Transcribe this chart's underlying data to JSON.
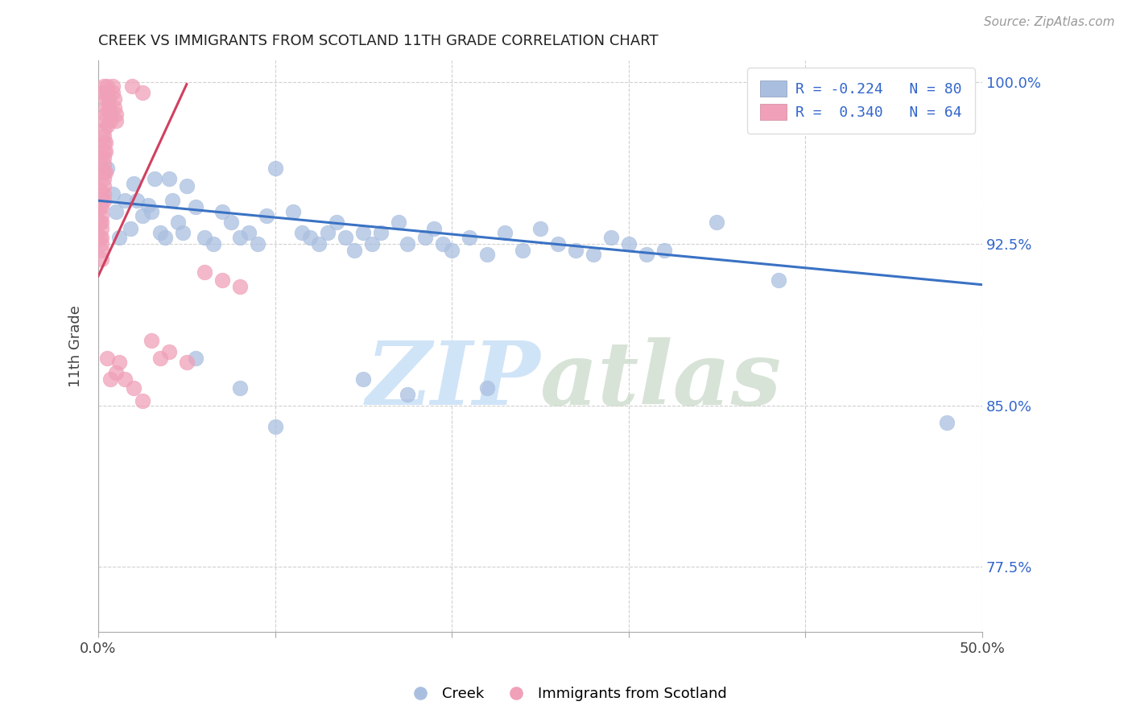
{
  "title": "CREEK VS IMMIGRANTS FROM SCOTLAND 11TH GRADE CORRELATION CHART",
  "source": "Source: ZipAtlas.com",
  "ylabel": "11th Grade",
  "xlim": [
    0.0,
    0.5
  ],
  "ylim": [
    0.745,
    1.01
  ],
  "xtick_values": [
    0.0,
    0.1,
    0.2,
    0.3,
    0.4,
    0.5
  ],
  "xtick_labels": [
    "0.0%",
    "",
    "",
    "",
    "",
    "50.0%"
  ],
  "ytick_values": [
    0.775,
    0.85,
    0.925,
    1.0
  ],
  "ytick_labels": [
    "77.5%",
    "85.0%",
    "92.5%",
    "100.0%"
  ],
  "grid_color": "#d0d0d0",
  "background_color": "#ffffff",
  "title_color": "#222222",
  "axis_label_color": "#444444",
  "tick_color": "#444444",
  "right_tick_color": "#3366cc",
  "blue_scatter_color": "#aabfe0",
  "pink_scatter_color": "#f0a0b8",
  "blue_line_color": "#3a72c4",
  "pink_line_color": "#d04060",
  "watermark_color": "#d0e4f8",
  "blue_legend_label": "Creek",
  "pink_legend_label": "Immigrants from Scotland",
  "blue_scatter": [
    [
      0.005,
      0.96
    ],
    [
      0.008,
      0.948
    ],
    [
      0.01,
      0.94
    ],
    [
      0.012,
      0.928
    ],
    [
      0.015,
      0.945
    ],
    [
      0.018,
      0.932
    ],
    [
      0.02,
      0.953
    ],
    [
      0.022,
      0.945
    ],
    [
      0.025,
      0.938
    ],
    [
      0.028,
      0.943
    ],
    [
      0.03,
      0.94
    ],
    [
      0.032,
      0.955
    ],
    [
      0.035,
      0.93
    ],
    [
      0.038,
      0.928
    ],
    [
      0.04,
      0.955
    ],
    [
      0.042,
      0.945
    ],
    [
      0.045,
      0.935
    ],
    [
      0.048,
      0.93
    ],
    [
      0.05,
      0.952
    ],
    [
      0.055,
      0.942
    ],
    [
      0.06,
      0.928
    ],
    [
      0.065,
      0.925
    ],
    [
      0.07,
      0.94
    ],
    [
      0.075,
      0.935
    ],
    [
      0.08,
      0.928
    ],
    [
      0.085,
      0.93
    ],
    [
      0.09,
      0.925
    ],
    [
      0.095,
      0.938
    ],
    [
      0.1,
      0.96
    ],
    [
      0.11,
      0.94
    ],
    [
      0.115,
      0.93
    ],
    [
      0.12,
      0.928
    ],
    [
      0.125,
      0.925
    ],
    [
      0.13,
      0.93
    ],
    [
      0.135,
      0.935
    ],
    [
      0.14,
      0.928
    ],
    [
      0.145,
      0.922
    ],
    [
      0.15,
      0.93
    ],
    [
      0.155,
      0.925
    ],
    [
      0.16,
      0.93
    ],
    [
      0.17,
      0.935
    ],
    [
      0.175,
      0.925
    ],
    [
      0.185,
      0.928
    ],
    [
      0.19,
      0.932
    ],
    [
      0.195,
      0.925
    ],
    [
      0.2,
      0.922
    ],
    [
      0.21,
      0.928
    ],
    [
      0.22,
      0.92
    ],
    [
      0.23,
      0.93
    ],
    [
      0.24,
      0.922
    ],
    [
      0.25,
      0.932
    ],
    [
      0.26,
      0.925
    ],
    [
      0.27,
      0.922
    ],
    [
      0.28,
      0.92
    ],
    [
      0.29,
      0.928
    ],
    [
      0.3,
      0.925
    ],
    [
      0.31,
      0.92
    ],
    [
      0.32,
      0.922
    ],
    [
      0.055,
      0.872
    ],
    [
      0.08,
      0.858
    ],
    [
      0.15,
      0.862
    ],
    [
      0.175,
      0.855
    ],
    [
      0.1,
      0.84
    ],
    [
      0.22,
      0.858
    ],
    [
      0.35,
      0.935
    ],
    [
      0.385,
      0.908
    ],
    [
      0.48,
      0.842
    ]
  ],
  "pink_scatter": [
    [
      0.005,
      0.998
    ],
    [
      0.005,
      0.995
    ],
    [
      0.006,
      0.992
    ],
    [
      0.006,
      0.988
    ],
    [
      0.007,
      0.985
    ],
    [
      0.007,
      0.982
    ],
    [
      0.008,
      0.998
    ],
    [
      0.008,
      0.995
    ],
    [
      0.009,
      0.992
    ],
    [
      0.009,
      0.988
    ],
    [
      0.01,
      0.985
    ],
    [
      0.01,
      0.982
    ],
    [
      0.003,
      0.998
    ],
    [
      0.003,
      0.995
    ],
    [
      0.004,
      0.992
    ],
    [
      0.004,
      0.988
    ],
    [
      0.004,
      0.985
    ],
    [
      0.005,
      0.98
    ],
    [
      0.003,
      0.982
    ],
    [
      0.003,
      0.978
    ],
    [
      0.003,
      0.975
    ],
    [
      0.003,
      0.972
    ],
    [
      0.004,
      0.972
    ],
    [
      0.004,
      0.968
    ],
    [
      0.003,
      0.968
    ],
    [
      0.003,
      0.965
    ],
    [
      0.003,
      0.962
    ],
    [
      0.003,
      0.958
    ],
    [
      0.004,
      0.958
    ],
    [
      0.003,
      0.955
    ],
    [
      0.003,
      0.952
    ],
    [
      0.003,
      0.948
    ],
    [
      0.003,
      0.945
    ],
    [
      0.002,
      0.945
    ],
    [
      0.002,
      0.942
    ],
    [
      0.002,
      0.938
    ],
    [
      0.002,
      0.935
    ],
    [
      0.002,
      0.932
    ],
    [
      0.002,
      0.928
    ],
    [
      0.002,
      0.925
    ],
    [
      0.002,
      0.922
    ],
    [
      0.002,
      0.918
    ],
    [
      0.001,
      0.965
    ],
    [
      0.001,
      0.958
    ],
    [
      0.001,
      0.95
    ],
    [
      0.001,
      0.942
    ],
    [
      0.001,
      0.935
    ],
    [
      0.001,
      0.928
    ],
    [
      0.019,
      0.998
    ],
    [
      0.025,
      0.995
    ],
    [
      0.005,
      0.872
    ],
    [
      0.007,
      0.862
    ],
    [
      0.03,
      0.88
    ],
    [
      0.035,
      0.872
    ],
    [
      0.06,
      0.912
    ],
    [
      0.07,
      0.908
    ],
    [
      0.012,
      0.87
    ],
    [
      0.015,
      0.862
    ],
    [
      0.02,
      0.858
    ],
    [
      0.025,
      0.852
    ],
    [
      0.04,
      0.875
    ],
    [
      0.05,
      0.87
    ],
    [
      0.08,
      0.905
    ],
    [
      0.01,
      0.865
    ]
  ],
  "blue_line_x": [
    0.0,
    0.5
  ],
  "blue_line_y": [
    0.945,
    0.906
  ],
  "pink_line_x": [
    0.0,
    0.05
  ],
  "pink_line_y": [
    0.91,
    0.999
  ]
}
